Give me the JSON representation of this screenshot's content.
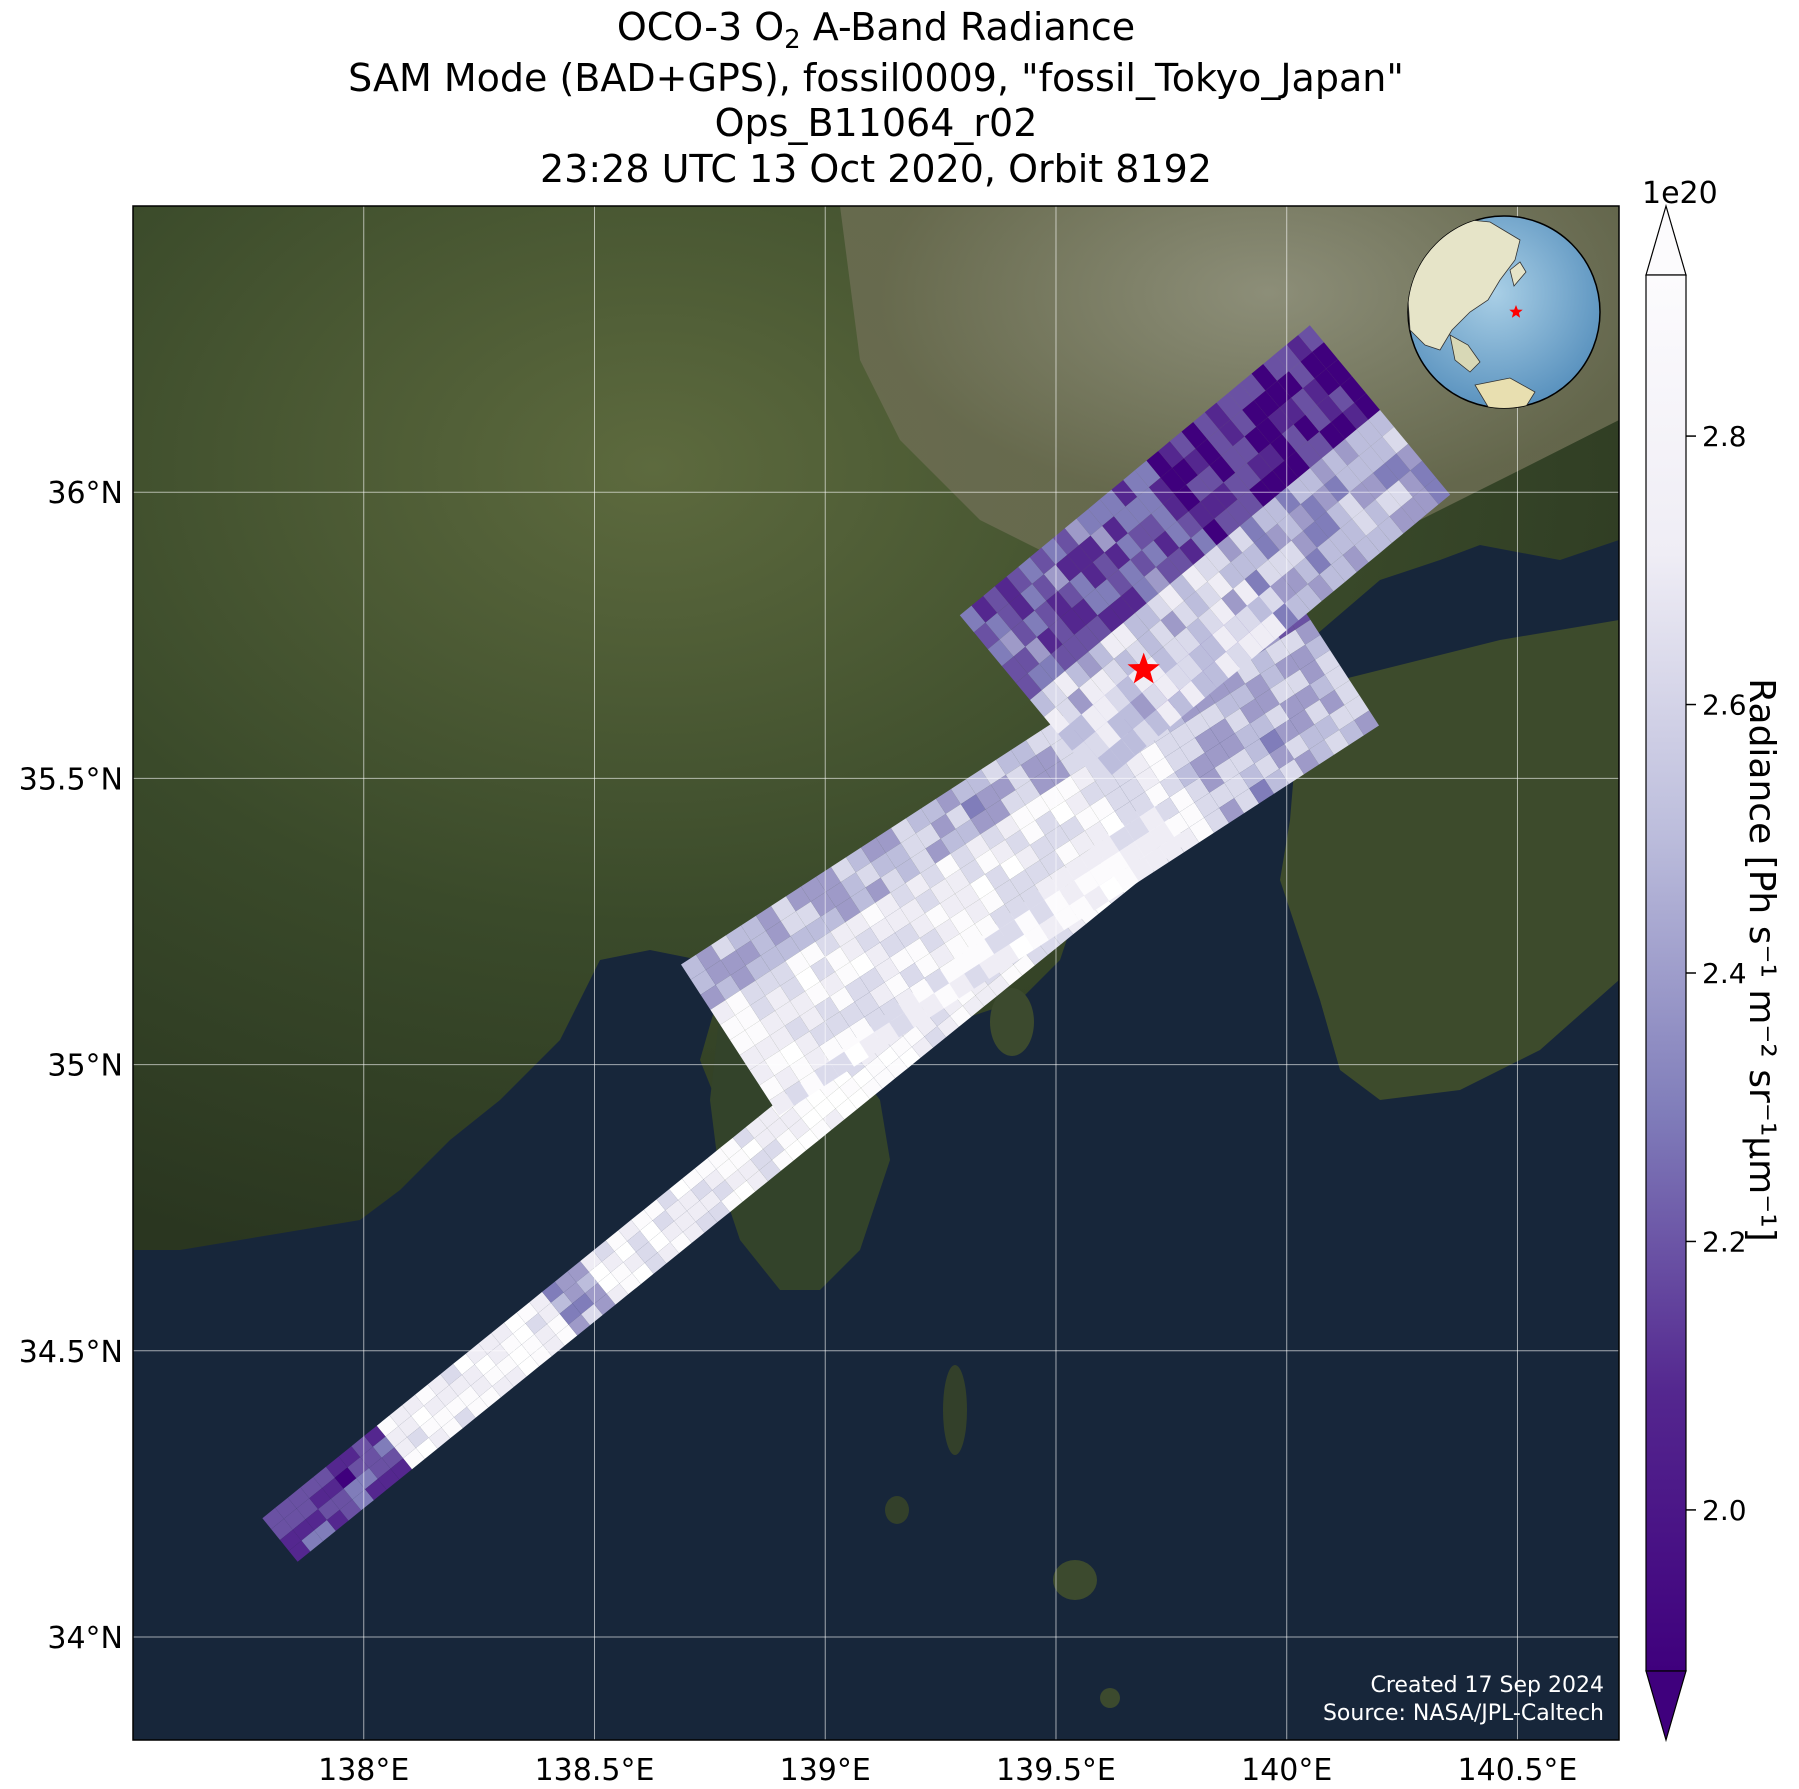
{
  "title": {
    "line1_pre": "OCO-3 O",
    "line1_sub": "2",
    "line1_post": " A-Band Radiance",
    "line2": "SAM Mode (BAD+GPS), fossil0009, \"fossil_Tokyo_Japan\"",
    "line3": "Ops_B11064_r02",
    "line4": "23:28 UTC 13 Oct 2020, Orbit 8192"
  },
  "axes": {
    "lon_range": [
      137.5,
      140.72
    ],
    "lat_range": [
      33.82,
      36.5
    ],
    "x_ticks": [
      {
        "value": 138.0,
        "label": "138°E"
      },
      {
        "value": 138.5,
        "label": "138.5°E"
      },
      {
        "value": 139.0,
        "label": "139°E"
      },
      {
        "value": 139.5,
        "label": "139.5°E"
      },
      {
        "value": 140.0,
        "label": "140°E"
      },
      {
        "value": 140.5,
        "label": "140.5°E"
      }
    ],
    "y_ticks": [
      {
        "value": 34.0,
        "label": "34°N"
      },
      {
        "value": 34.5,
        "label": "34.5°N"
      },
      {
        "value": 35.0,
        "label": "35°N"
      },
      {
        "value": 35.5,
        "label": "35.5°N"
      },
      {
        "value": 36.0,
        "label": "36°N"
      }
    ],
    "gridlines": true
  },
  "colorbar": {
    "multiplier": "1e20",
    "range": [
      1.88,
      2.92
    ],
    "ticks": [
      {
        "value": 2.0,
        "label": "2.0"
      },
      {
        "value": 2.2,
        "label": "2.2"
      },
      {
        "value": 2.4,
        "label": "2.4"
      },
      {
        "value": 2.6,
        "label": "2.6"
      },
      {
        "value": 2.8,
        "label": "2.8"
      }
    ],
    "label": "Radiance [Ph s⁻¹ m⁻² sr⁻¹μm⁻¹]",
    "colormap": "Purples_r",
    "extend": "both",
    "color_low": "#3f007d",
    "color_high": "#fcfbfd"
  },
  "target": {
    "lon": 139.69,
    "lat": 35.69,
    "marker": "red-star",
    "color": "#ff0000"
  },
  "credits": {
    "line1": "Created 17 Sep 2024",
    "line2": "Source: NASA/JPL-Caltech"
  },
  "colors": {
    "ocean": "#17263a",
    "land_dark": "#2d3a22",
    "land_mid": "#4b5a35",
    "land_urban": "#8c8a74",
    "grid": "#ffffff"
  }
}
